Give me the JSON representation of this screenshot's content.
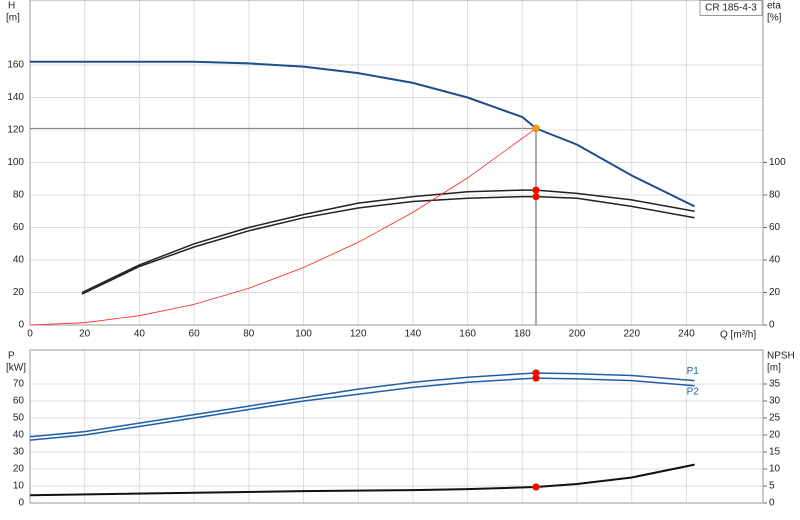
{
  "chart_data": [
    {
      "type": "line",
      "legend_text": "CR 185-4-3",
      "y_label": "H",
      "y_unit": "[m]",
      "y2_label": "eta",
      "y2_unit": "[%]",
      "x_label": "Q [m³/h]",
      "xlim": [
        0,
        268
      ],
      "xticks": [
        0,
        20,
        40,
        60,
        80,
        100,
        120,
        140,
        160,
        180,
        200,
        220,
        240
      ],
      "ylim": [
        0,
        200
      ],
      "yticks": [
        0,
        20,
        40,
        60,
        80,
        100,
        120,
        140,
        160
      ],
      "y2lim": [
        0,
        200
      ],
      "y2ticks": [
        0,
        20,
        40,
        60,
        80,
        100
      ],
      "grid": true,
      "series": [
        {
          "color": "#1f4e8c",
          "width": 2,
          "x": [
            0,
            20,
            40,
            60,
            80,
            100,
            120,
            140,
            160,
            180,
            185,
            200,
            220,
            243
          ],
          "values": [
            162,
            162,
            162,
            162,
            161,
            159,
            155,
            149,
            140,
            128,
            121,
            111,
            92,
            73
          ]
        },
        {
          "color": "#222222",
          "width": 1.5,
          "axis": "y2",
          "x": [
            19,
            40,
            60,
            80,
            100,
            120,
            140,
            160,
            180,
            185,
            200,
            220,
            243
          ],
          "values": [
            20,
            37,
            50,
            60,
            68,
            75,
            79,
            82,
            83,
            83,
            81,
            77,
            70
          ]
        },
        {
          "color": "#222222",
          "width": 1.5,
          "axis": "y2",
          "x": [
            19,
            40,
            60,
            80,
            100,
            120,
            140,
            160,
            180,
            185,
            200,
            220,
            243
          ],
          "values": [
            19,
            36,
            48,
            58,
            66,
            72,
            76,
            78,
            79,
            79,
            78,
            73,
            66
          ]
        },
        {
          "color": "#ff2020",
          "width": 0.8,
          "x": [
            0,
            20,
            40,
            60,
            80,
            100,
            120,
            140,
            160,
            185
          ],
          "values": [
            0,
            1.4,
            5.7,
            12.7,
            22.6,
            35.4,
            50.9,
            69.3,
            90.5,
            121
          ]
        }
      ],
      "markers": [
        {
          "x": 185,
          "y": 121,
          "color": "#f5a000"
        },
        {
          "x": 185,
          "y": 83,
          "axis": "y2",
          "color": "#ff0000"
        },
        {
          "x": 185,
          "y": 79,
          "axis": "y2",
          "color": "#ff0000"
        }
      ],
      "guides": true
    },
    {
      "type": "line",
      "y_label": "P",
      "y_unit": "[kW]",
      "y2_label": "NPSH",
      "y2_unit": "[m]",
      "xlim": [
        0,
        268
      ],
      "ylim": [
        0,
        90
      ],
      "yticks": [
        0,
        10,
        20,
        30,
        40,
        50,
        60,
        70
      ],
      "y2lim": [
        0,
        45
      ],
      "y2ticks": [
        0,
        5,
        10,
        15,
        20,
        25,
        30,
        35
      ],
      "grid": true,
      "series": [
        {
          "name": "P1",
          "color": "#1f5fa8",
          "width": 1.5,
          "x": [
            0,
            20,
            40,
            60,
            80,
            100,
            120,
            140,
            160,
            180,
            185,
            200,
            220,
            243
          ],
          "values": [
            39,
            42,
            47,
            52,
            57,
            62,
            67,
            71,
            74,
            76,
            76.5,
            76,
            75,
            72
          ]
        },
        {
          "name": "P2",
          "color": "#1f5fa8",
          "width": 1.5,
          "x": [
            0,
            20,
            40,
            60,
            80,
            100,
            120,
            140,
            160,
            180,
            185,
            200,
            220,
            243
          ],
          "values": [
            37,
            40,
            45,
            50,
            55,
            60,
            64,
            68,
            71,
            73,
            73.5,
            73,
            72,
            69
          ]
        },
        {
          "color": "#111111",
          "width": 2,
          "axis": "y2",
          "x": [
            0,
            100,
            140,
            160,
            185,
            200,
            220,
            243
          ],
          "values": [
            2.3,
            3.5,
            3.8,
            4.1,
            4.7,
            5.6,
            7.5,
            11.3
          ]
        }
      ],
      "markers": [
        {
          "x": 185,
          "y": 76.5,
          "color": "#ff0000"
        },
        {
          "x": 185,
          "y": 73.5,
          "color": "#ff0000"
        },
        {
          "x": 185,
          "y": 4.7,
          "axis": "y2",
          "color": "#ff0000"
        }
      ]
    }
  ]
}
